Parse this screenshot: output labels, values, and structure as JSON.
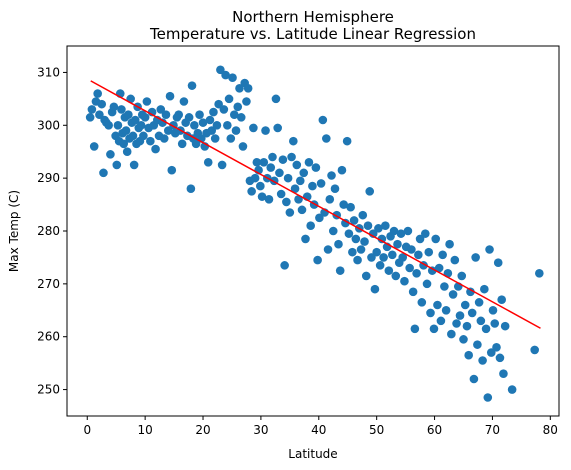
{
  "chart_data": {
    "type": "scatter",
    "title": "Northern Hemisphere",
    "subtitle": "Temperature vs. Latitude Linear Regression",
    "xlabel": "Latitude",
    "ylabel": "Max Temp (C)",
    "xlim": [
      -3.5,
      81.5
    ],
    "ylim": [
      245,
      315
    ],
    "xticks": [
      0,
      10,
      20,
      30,
      40,
      50,
      60,
      70,
      80
    ],
    "yticks": [
      250,
      260,
      270,
      280,
      290,
      300,
      310
    ],
    "grid": false,
    "point_color": "#1f77b4",
    "line_color": "#ff0000",
    "regression_line": {
      "x": [
        0.6,
        78.3
      ],
      "y": [
        308.4,
        261.6
      ]
    },
    "series": [
      {
        "points": [
          [
            0.5,
            301.5
          ],
          [
            0.8,
            303.0
          ],
          [
            1.2,
            296.0
          ],
          [
            1.5,
            304.5
          ],
          [
            1.8,
            306.0
          ],
          [
            2.1,
            302.0
          ],
          [
            2.5,
            304.0
          ],
          [
            2.8,
            291.0
          ],
          [
            3.0,
            301.0
          ],
          [
            3.3,
            300.5
          ],
          [
            3.7,
            300.0
          ],
          [
            4.0,
            294.5
          ],
          [
            4.3,
            302.5
          ],
          [
            4.6,
            303.5
          ],
          [
            4.9,
            298.0
          ],
          [
            5.1,
            292.5
          ],
          [
            5.3,
            300.0
          ],
          [
            5.5,
            297.0
          ],
          [
            5.7,
            306.0
          ],
          [
            5.9,
            303.0
          ],
          [
            6.1,
            298.5
          ],
          [
            6.3,
            296.5
          ],
          [
            6.5,
            301.5
          ],
          [
            6.7,
            299.0
          ],
          [
            6.9,
            295.0
          ],
          [
            7.1,
            302.0
          ],
          [
            7.3,
            297.5
          ],
          [
            7.5,
            305.0
          ],
          [
            7.7,
            300.5
          ],
          [
            7.9,
            298.0
          ],
          [
            8.1,
            292.5
          ],
          [
            8.3,
            301.0
          ],
          [
            8.5,
            296.5
          ],
          [
            8.7,
            303.5
          ],
          [
            8.9,
            299.5
          ],
          [
            9.1,
            297.0
          ],
          [
            9.3,
            300.0
          ],
          [
            9.5,
            302.0
          ],
          [
            9.7,
            298.0
          ],
          [
            10.0,
            301.5
          ],
          [
            10.3,
            304.5
          ],
          [
            10.6,
            299.5
          ],
          [
            10.9,
            297.0
          ],
          [
            11.2,
            302.5
          ],
          [
            11.5,
            300.0
          ],
          [
            11.8,
            295.5
          ],
          [
            12.1,
            301.0
          ],
          [
            12.4,
            298.0
          ],
          [
            12.7,
            303.0
          ],
          [
            13.0,
            300.5
          ],
          [
            13.3,
            297.5
          ],
          [
            13.6,
            302.0
          ],
          [
            14.0,
            299.0
          ],
          [
            14.3,
            305.5
          ],
          [
            14.6,
            291.5
          ],
          [
            14.9,
            300.0
          ],
          [
            15.2,
            298.5
          ],
          [
            15.5,
            301.5
          ],
          [
            15.8,
            302.0
          ],
          [
            16.1,
            299.0
          ],
          [
            16.4,
            296.5
          ],
          [
            16.7,
            304.5
          ],
          [
            17.0,
            300.5
          ],
          [
            17.3,
            298.0
          ],
          [
            17.6,
            301.5
          ],
          [
            17.9,
            288.0
          ],
          [
            18.1,
            307.5
          ],
          [
            18.3,
            297.5
          ],
          [
            18.5,
            300.0
          ],
          [
            18.8,
            296.5
          ],
          [
            19.1,
            298.5
          ],
          [
            19.4,
            302.0
          ],
          [
            19.7,
            297.5
          ],
          [
            20.0,
            300.5
          ],
          [
            20.3,
            296.0
          ],
          [
            20.6,
            298.5
          ],
          [
            20.9,
            293.0
          ],
          [
            21.2,
            301.0
          ],
          [
            21.5,
            299.0
          ],
          [
            21.8,
            302.5
          ],
          [
            22.1,
            297.5
          ],
          [
            22.4,
            300.0
          ],
          [
            22.7,
            304.0
          ],
          [
            23.0,
            310.5
          ],
          [
            23.3,
            292.5
          ],
          [
            23.6,
            303.0
          ],
          [
            23.9,
            309.5
          ],
          [
            24.2,
            300.0
          ],
          [
            24.5,
            305.0
          ],
          [
            24.8,
            297.5
          ],
          [
            25.1,
            309.0
          ],
          [
            25.4,
            302.0
          ],
          [
            25.7,
            299.0
          ],
          [
            26.0,
            303.5
          ],
          [
            26.3,
            307.0
          ],
          [
            26.6,
            301.5
          ],
          [
            26.9,
            296.0
          ],
          [
            27.2,
            308.0
          ],
          [
            27.5,
            304.5
          ],
          [
            27.8,
            307.0
          ],
          [
            28.1,
            289.5
          ],
          [
            28.4,
            287.5
          ],
          [
            28.7,
            299.5
          ],
          [
            29.0,
            290.0
          ],
          [
            29.3,
            293.0
          ],
          [
            29.6,
            291.5
          ],
          [
            29.9,
            288.5
          ],
          [
            30.2,
            286.5
          ],
          [
            30.5,
            293.0
          ],
          [
            30.8,
            299.0
          ],
          [
            31.1,
            290.0
          ],
          [
            31.4,
            286.0
          ],
          [
            31.7,
            292.0
          ],
          [
            32.0,
            294.0
          ],
          [
            32.3,
            289.5
          ],
          [
            32.6,
            305.0
          ],
          [
            32.9,
            299.5
          ],
          [
            33.2,
            291.0
          ],
          [
            33.5,
            287.0
          ],
          [
            33.8,
            293.5
          ],
          [
            34.1,
            273.5
          ],
          [
            34.4,
            285.5
          ],
          [
            34.7,
            290.0
          ],
          [
            35.0,
            283.5
          ],
          [
            35.3,
            294.0
          ],
          [
            35.6,
            297.0
          ],
          [
            35.9,
            288.0
          ],
          [
            36.2,
            292.5
          ],
          [
            36.5,
            286.0
          ],
          [
            36.8,
            289.5
          ],
          [
            37.1,
            284.0
          ],
          [
            37.4,
            291.0
          ],
          [
            37.7,
            278.5
          ],
          [
            38.0,
            286.5
          ],
          [
            38.3,
            293.0
          ],
          [
            38.6,
            281.0
          ],
          [
            38.9,
            288.5
          ],
          [
            39.2,
            285.0
          ],
          [
            39.5,
            292.0
          ],
          [
            39.8,
            274.5
          ],
          [
            40.1,
            282.5
          ],
          [
            40.4,
            289.0
          ],
          [
            40.7,
            301.0
          ],
          [
            41.0,
            283.5
          ],
          [
            41.3,
            297.5
          ],
          [
            41.6,
            276.5
          ],
          [
            41.9,
            286.0
          ],
          [
            42.2,
            290.5
          ],
          [
            42.5,
            280.0
          ],
          [
            42.8,
            288.0
          ],
          [
            43.1,
            283.0
          ],
          [
            43.4,
            277.5
          ],
          [
            43.7,
            272.5
          ],
          [
            44.0,
            291.5
          ],
          [
            44.3,
            285.0
          ],
          [
            44.6,
            281.5
          ],
          [
            44.9,
            297.0
          ],
          [
            45.2,
            279.5
          ],
          [
            45.5,
            284.5
          ],
          [
            45.8,
            276.0
          ],
          [
            46.1,
            282.0
          ],
          [
            46.4,
            278.5
          ],
          [
            46.7,
            274.5
          ],
          [
            47.0,
            280.5
          ],
          [
            47.3,
            276.5
          ],
          [
            47.6,
            283.0
          ],
          [
            47.9,
            278.0
          ],
          [
            48.2,
            271.5
          ],
          [
            48.5,
            281.0
          ],
          [
            48.8,
            287.5
          ],
          [
            49.1,
            275.0
          ],
          [
            49.4,
            279.5
          ],
          [
            49.7,
            269.0
          ],
          [
            50.0,
            276.0
          ],
          [
            50.3,
            280.5
          ],
          [
            50.6,
            273.5
          ],
          [
            50.9,
            278.5
          ],
          [
            51.2,
            275.0
          ],
          [
            51.5,
            281.0
          ],
          [
            51.8,
            277.0
          ],
          [
            52.1,
            272.5
          ],
          [
            52.4,
            279.0
          ],
          [
            52.7,
            275.5
          ],
          [
            53.0,
            280.0
          ],
          [
            53.3,
            271.5
          ],
          [
            53.6,
            277.5
          ],
          [
            53.9,
            274.0
          ],
          [
            54.2,
            279.5
          ],
          [
            54.5,
            275.0
          ],
          [
            54.8,
            270.5
          ],
          [
            55.1,
            277.0
          ],
          [
            55.4,
            280.0
          ],
          [
            55.7,
            273.0
          ],
          [
            56.0,
            276.5
          ],
          [
            56.3,
            268.5
          ],
          [
            56.6,
            261.5
          ],
          [
            56.9,
            272.0
          ],
          [
            57.2,
            275.5
          ],
          [
            57.5,
            278.5
          ],
          [
            57.8,
            266.5
          ],
          [
            58.1,
            273.5
          ],
          [
            58.4,
            279.5
          ],
          [
            58.7,
            270.0
          ],
          [
            59.0,
            276.0
          ],
          [
            59.3,
            264.5
          ],
          [
            59.6,
            272.5
          ],
          [
            59.9,
            261.5
          ],
          [
            60.2,
            278.5
          ],
          [
            60.5,
            266.0
          ],
          [
            60.8,
            273.0
          ],
          [
            61.1,
            263.0
          ],
          [
            61.4,
            275.5
          ],
          [
            61.7,
            269.5
          ],
          [
            62.0,
            265.0
          ],
          [
            62.3,
            272.0
          ],
          [
            62.6,
            277.5
          ],
          [
            62.9,
            260.5
          ],
          [
            63.2,
            268.0
          ],
          [
            63.5,
            274.5
          ],
          [
            63.8,
            262.5
          ],
          [
            64.1,
            269.5
          ],
          [
            64.4,
            264.0
          ],
          [
            64.7,
            271.5
          ],
          [
            65.0,
            259.5
          ],
          [
            65.3,
            266.0
          ],
          [
            65.6,
            262.0
          ],
          [
            65.9,
            256.5
          ],
          [
            66.2,
            268.5
          ],
          [
            66.5,
            264.5
          ],
          [
            66.8,
            252.0
          ],
          [
            67.1,
            275.0
          ],
          [
            67.4,
            258.5
          ],
          [
            67.7,
            266.5
          ],
          [
            68.0,
            263.0
          ],
          [
            68.3,
            255.5
          ],
          [
            68.6,
            269.0
          ],
          [
            68.9,
            261.5
          ],
          [
            69.2,
            248.5
          ],
          [
            69.5,
            276.5
          ],
          [
            69.8,
            257.0
          ],
          [
            70.1,
            265.0
          ],
          [
            70.4,
            262.5
          ],
          [
            70.7,
            258.0
          ],
          [
            71.0,
            274.0
          ],
          [
            71.3,
            256.0
          ],
          [
            71.6,
            267.0
          ],
          [
            71.9,
            253.0
          ],
          [
            72.2,
            262.0
          ],
          [
            73.4,
            250.0
          ],
          [
            77.3,
            257.5
          ],
          [
            78.1,
            272.0
          ]
        ]
      }
    ]
  }
}
